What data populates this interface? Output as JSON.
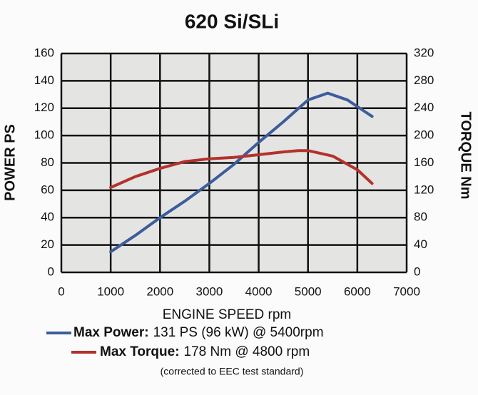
{
  "chart_data": {
    "type": "line",
    "title": "620 Si/SLi",
    "x_label": "ENGINE SPEED rpm",
    "y_label": "POWER PS",
    "y2_label": "TORQUE Nm",
    "xlim": [
      0,
      7000
    ],
    "xticks": [
      0,
      1000,
      2000,
      3000,
      4000,
      5000,
      6000,
      7000
    ],
    "ylim": [
      0,
      160
    ],
    "yticks": [
      0,
      20,
      40,
      60,
      80,
      100,
      120,
      140,
      160
    ],
    "y2lim": [
      0,
      320
    ],
    "y2ticks": [
      0,
      40,
      80,
      120,
      160,
      200,
      240,
      280,
      320
    ],
    "grid": true,
    "series": [
      {
        "name": "Max Power:",
        "legend_text": "131 PS (96 kW) @ 5400rpm",
        "color": "#3d5c9c",
        "x": [
          1000,
          1500,
          2000,
          2500,
          3000,
          3500,
          4000,
          4500,
          5000,
          5400,
          5800,
          6300
        ],
        "values": [
          15,
          27,
          40,
          52,
          65,
          79,
          95,
          110,
          126,
          131,
          126,
          114
        ]
      },
      {
        "name": "Max Torque:",
        "legend_text": "178 Nm @ 4800 rpm",
        "color": "#b3322b",
        "axis": "y2",
        "x": [
          1000,
          1500,
          2000,
          2500,
          3000,
          3500,
          4000,
          4500,
          4800,
          5000,
          5500,
          6000,
          6300
        ],
        "values": [
          124,
          140,
          152,
          162,
          166,
          168,
          172,
          176,
          178,
          178,
          170,
          150,
          130
        ]
      }
    ],
    "note": "(corrected to EEC test standard)"
  }
}
